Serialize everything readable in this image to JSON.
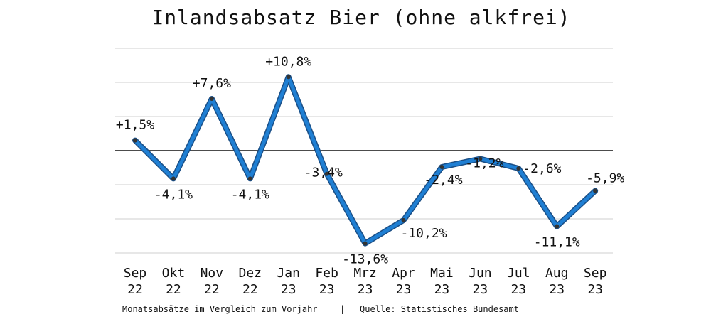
{
  "chart_data": {
    "type": "line",
    "title": "Inlandsabsatz Bier (ohne alkfrei)",
    "categories": [
      [
        "Sep",
        "22"
      ],
      [
        "Okt",
        "22"
      ],
      [
        "Nov",
        "22"
      ],
      [
        "Dez",
        "22"
      ],
      [
        "Jan",
        "23"
      ],
      [
        "Feb",
        "23"
      ],
      [
        "Mrz",
        "23"
      ],
      [
        "Apr",
        "23"
      ],
      [
        "Mai",
        "23"
      ],
      [
        "Jun",
        "23"
      ],
      [
        "Jul",
        "23"
      ],
      [
        "Aug",
        "23"
      ],
      [
        "Sep",
        "23"
      ]
    ],
    "values": [
      1.5,
      -4.1,
      7.6,
      -4.1,
      10.8,
      -3.4,
      -13.6,
      -10.2,
      -2.4,
      -1.2,
      -2.6,
      -11.1,
      -5.9
    ],
    "data_labels": [
      "+1,5%",
      "-4,1%",
      "+7,6%",
      "-4,1%",
      "+10,8%",
      "-3,4%",
      "-13,6%",
      "-10,2%",
      "-2,4%",
      "-1,2%",
      "-2,6%",
      "-11,1%",
      "-5,9%"
    ],
    "ylim": [
      -15,
      15
    ],
    "grid": true,
    "y_tick_labels_shown": false,
    "line_color": "#1f7fd3",
    "footer_note": "Monatsabsätze im Vergleich zum Vorjahr",
    "separator": "|",
    "source": "Quelle: Statistisches Bundesamt"
  }
}
